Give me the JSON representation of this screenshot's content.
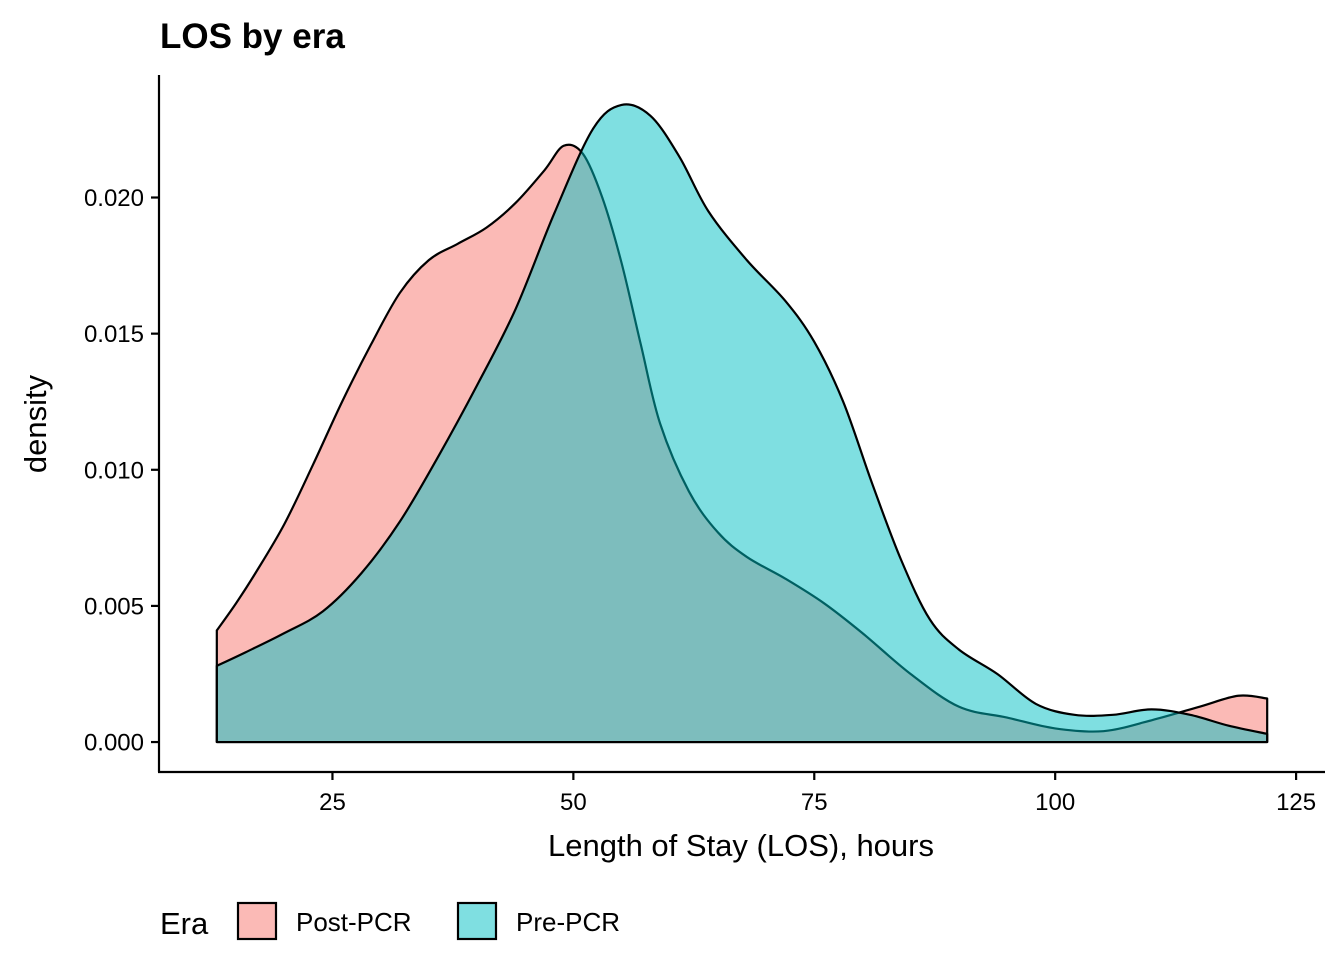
{
  "chart_data": {
    "type": "area",
    "subtype": "density",
    "title": "LOS by era",
    "xlabel": "Length of Stay (LOS), hours",
    "ylabel": "density",
    "xlim": [
      7,
      128
    ],
    "ylim": [
      -0.0011,
      0.0245
    ],
    "x_ticks": [
      25,
      50,
      75,
      100,
      125
    ],
    "x_tick_labels": [
      "25",
      "50",
      "75",
      "100",
      "125"
    ],
    "y_ticks": [
      0,
      0.005,
      0.01,
      0.015,
      0.02
    ],
    "y_tick_labels": [
      "0.000",
      "0.005",
      "0.010",
      "0.015",
      "0.020"
    ],
    "grid": false,
    "legend": {
      "title": "Era",
      "position": "bottom-left"
    },
    "series": [
      {
        "name": "Post-PCR",
        "color": "#F8766D",
        "points": [
          [
            13,
            0.0041
          ],
          [
            15,
            0.0051
          ],
          [
            17,
            0.0062
          ],
          [
            20,
            0.008
          ],
          [
            23,
            0.0102
          ],
          [
            26,
            0.0125
          ],
          [
            29,
            0.0146
          ],
          [
            32,
            0.0165
          ],
          [
            35,
            0.0177
          ],
          [
            38,
            0.0183
          ],
          [
            41,
            0.0189
          ],
          [
            44,
            0.0198
          ],
          [
            47,
            0.021
          ],
          [
            49,
            0.0219
          ],
          [
            51,
            0.0216
          ],
          [
            53,
            0.02
          ],
          [
            55,
            0.0176
          ],
          [
            57,
            0.0146
          ],
          [
            59,
            0.0117
          ],
          [
            62,
            0.0092
          ],
          [
            65,
            0.0077
          ],
          [
            68,
            0.0068
          ],
          [
            72,
            0.006
          ],
          [
            76,
            0.0051
          ],
          [
            80,
            0.004
          ],
          [
            85,
            0.0025
          ],
          [
            90,
            0.0013
          ],
          [
            95,
            0.0009
          ],
          [
            100,
            0.0005
          ],
          [
            105,
            0.0004
          ],
          [
            110,
            0.0008
          ],
          [
            115,
            0.0013
          ],
          [
            119,
            0.0017
          ],
          [
            122,
            0.0016
          ]
        ]
      },
      {
        "name": "Pre-PCR",
        "color": "#00BFC4",
        "points": [
          [
            13,
            0.0028
          ],
          [
            16,
            0.0033
          ],
          [
            20,
            0.004
          ],
          [
            24,
            0.0048
          ],
          [
            28,
            0.0062
          ],
          [
            32,
            0.0081
          ],
          [
            36,
            0.0105
          ],
          [
            40,
            0.0131
          ],
          [
            44,
            0.0159
          ],
          [
            48,
            0.0194
          ],
          [
            52,
            0.0225
          ],
          [
            55,
            0.0234
          ],
          [
            58,
            0.023
          ],
          [
            61,
            0.0215
          ],
          [
            64,
            0.0195
          ],
          [
            68,
            0.0177
          ],
          [
            72,
            0.0162
          ],
          [
            75,
            0.0147
          ],
          [
            78,
            0.0125
          ],
          [
            81,
            0.0095
          ],
          [
            84,
            0.0067
          ],
          [
            87,
            0.0045
          ],
          [
            90,
            0.0034
          ],
          [
            94,
            0.0025
          ],
          [
            98,
            0.0014
          ],
          [
            102,
            0.001
          ],
          [
            106,
            0.001
          ],
          [
            110,
            0.0012
          ],
          [
            114,
            0.001
          ],
          [
            118,
            0.0006
          ],
          [
            122,
            0.0003
          ]
        ]
      }
    ]
  }
}
